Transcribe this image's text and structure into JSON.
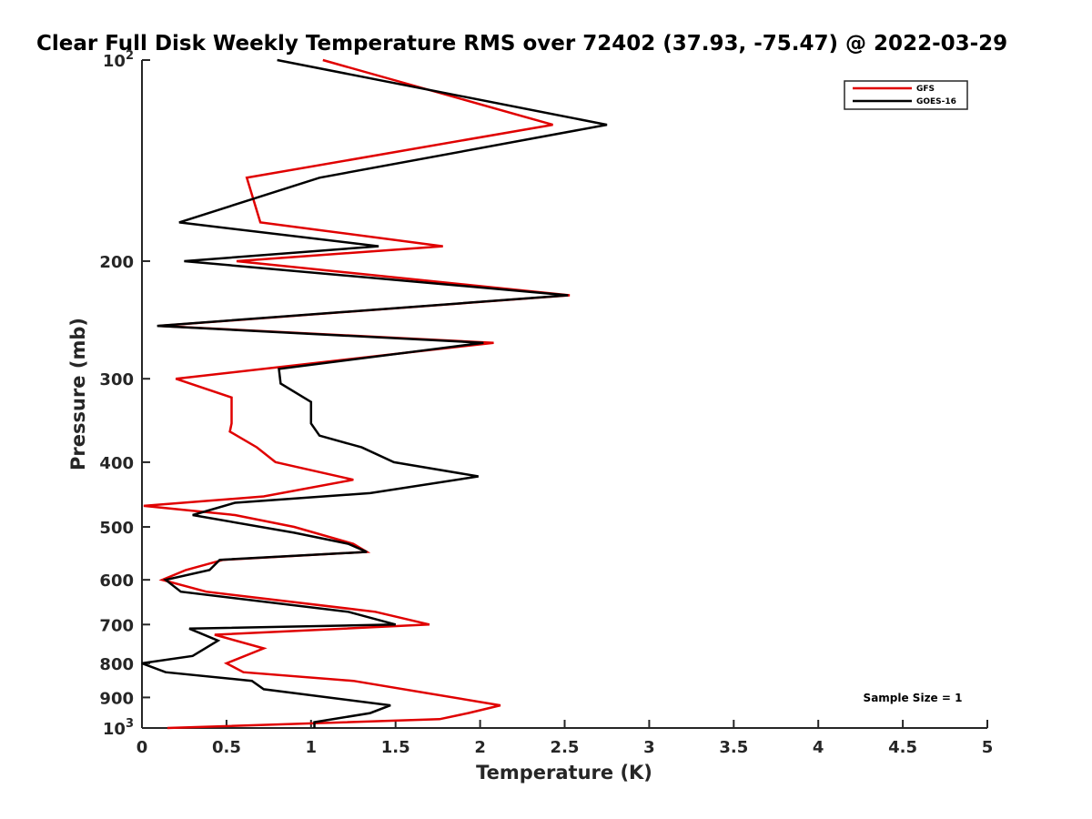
{
  "chart_data": {
    "type": "line",
    "title": "Clear Full Disk Weekly Temperature RMS over 72402 (37.93, -75.47) @ 2022-03-29",
    "xlabel": "Temperature (K)",
    "ylabel": "Pressure (mb)",
    "xlim": [
      0,
      5
    ],
    "ylim": [
      100,
      1000
    ],
    "y_scale": "log",
    "y_reversed": true,
    "grid": false,
    "legend_position": "top-right",
    "x_ticks": [
      0,
      0.5,
      1,
      1.5,
      2,
      2.5,
      3,
      3.5,
      4,
      4.5,
      5
    ],
    "x_tick_labels": [
      "0",
      "0.5",
      "1",
      "1.5",
      "2",
      "2.5",
      "3",
      "3.5",
      "4",
      "4.5",
      "5"
    ],
    "y_ticks": [
      100,
      200,
      300,
      400,
      500,
      600,
      700,
      800,
      900,
      1000
    ],
    "y_tick_labels": [
      {
        "base": "10",
        "exp": "2"
      },
      {
        "base": "200",
        "exp": ""
      },
      {
        "base": "300",
        "exp": ""
      },
      {
        "base": "400",
        "exp": ""
      },
      {
        "base": "500",
        "exp": ""
      },
      {
        "base": "600",
        "exp": ""
      },
      {
        "base": "700",
        "exp": ""
      },
      {
        "base": "800",
        "exp": ""
      },
      {
        "base": "900",
        "exp": ""
      },
      {
        "base": "10",
        "exp": "3"
      }
    ],
    "annotation": "Sample Size = 1",
    "series": [
      {
        "name": "GFS",
        "color": "#e00000",
        "points": [
          [
            1.07,
            100
          ],
          [
            2.43,
            125
          ],
          [
            0.62,
            150
          ],
          [
            0.7,
            175
          ],
          [
            1.78,
            190
          ],
          [
            0.56,
            200
          ],
          [
            2.53,
            225
          ],
          [
            0.1,
            250
          ],
          [
            2.08,
            265
          ],
          [
            0.2,
            300
          ],
          [
            0.53,
            320
          ],
          [
            0.53,
            350
          ],
          [
            0.52,
            360
          ],
          [
            0.68,
            380
          ],
          [
            0.79,
            400
          ],
          [
            1.25,
            425
          ],
          [
            0.72,
            450
          ],
          [
            0.01,
            465
          ],
          [
            0.55,
            480
          ],
          [
            0.9,
            500
          ],
          [
            1.25,
            530
          ],
          [
            1.33,
            545
          ],
          [
            0.48,
            560
          ],
          [
            0.26,
            580
          ],
          [
            0.12,
            600
          ],
          [
            0.38,
            625
          ],
          [
            1.38,
            670
          ],
          [
            1.7,
            700
          ],
          [
            0.43,
            725
          ],
          [
            0.72,
            760
          ],
          [
            0.5,
            800
          ],
          [
            0.6,
            825
          ],
          [
            1.25,
            850
          ],
          [
            2.12,
            925
          ],
          [
            1.93,
            950
          ],
          [
            1.76,
            970
          ],
          [
            0.15,
            1000
          ]
        ]
      },
      {
        "name": "GOES-16",
        "color": "#000000",
        "points": [
          [
            0.8,
            100
          ],
          [
            2.75,
            125
          ],
          [
            1.05,
            150
          ],
          [
            0.22,
            175
          ],
          [
            1.4,
            190
          ],
          [
            0.25,
            200
          ],
          [
            2.52,
            225
          ],
          [
            0.09,
            250
          ],
          [
            2.02,
            265
          ],
          [
            0.81,
            290
          ],
          [
            0.82,
            305
          ],
          [
            1.0,
            325
          ],
          [
            1.0,
            350
          ],
          [
            1.05,
            365
          ],
          [
            1.3,
            380
          ],
          [
            1.49,
            400
          ],
          [
            1.99,
            420
          ],
          [
            1.35,
            445
          ],
          [
            0.55,
            460
          ],
          [
            0.3,
            480
          ],
          [
            0.9,
            510
          ],
          [
            1.22,
            530
          ],
          [
            1.33,
            545
          ],
          [
            0.46,
            560
          ],
          [
            0.4,
            580
          ],
          [
            0.14,
            600
          ],
          [
            0.23,
            625
          ],
          [
            1.22,
            670
          ],
          [
            1.5,
            700
          ],
          [
            0.28,
            710
          ],
          [
            0.45,
            740
          ],
          [
            0.3,
            780
          ],
          [
            0.0,
            800
          ],
          [
            0.14,
            825
          ],
          [
            0.65,
            850
          ],
          [
            0.72,
            875
          ],
          [
            1.47,
            925
          ],
          [
            1.35,
            950
          ],
          [
            1.02,
            980
          ],
          [
            1.02,
            1000
          ]
        ]
      }
    ]
  }
}
